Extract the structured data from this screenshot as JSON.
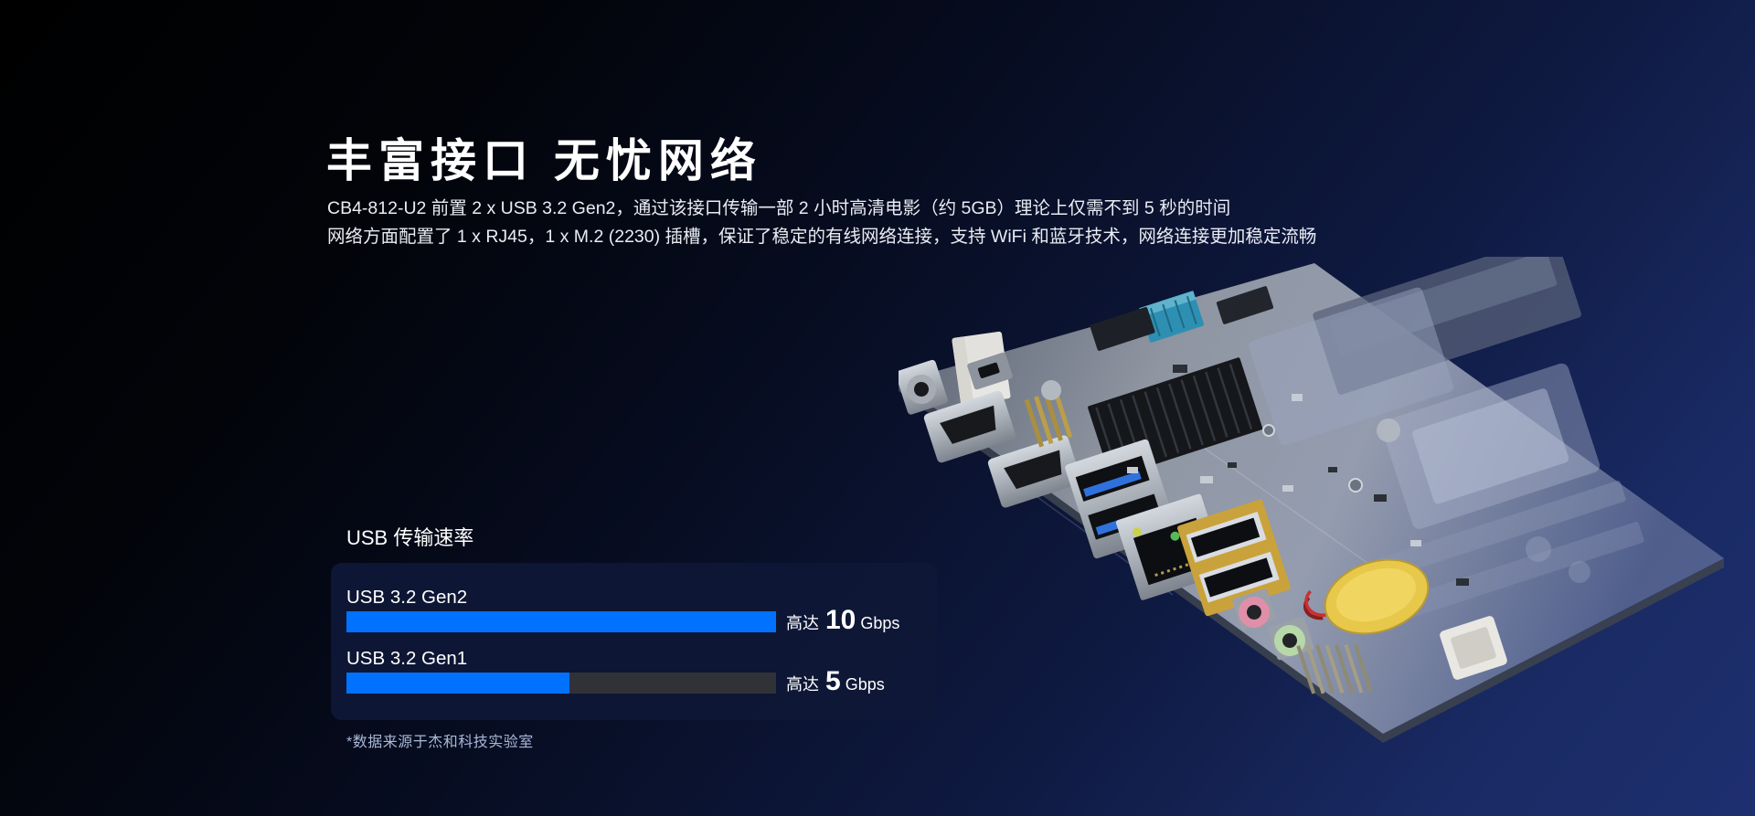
{
  "page": {
    "bg_top_color": "#000000",
    "bg_bottom_color": "#1e2f70"
  },
  "hero": {
    "title": "丰富接口 无忧网络",
    "paragraph_line1": "CB4-812-U2 前置 2 x USB 3.2 Gen2，通过该接口传输一部 2 小时高清电影（约 5GB）理论上仅需不到 5 秒的时间",
    "paragraph_line2": "网络方面配置了 1 x RJ45，1 x M.2 (2230) 插槽，保证了稳定的有线网络连接，支持 WiFi 和蓝牙技术，网络连接更加稳定流畅"
  },
  "speed_chart": {
    "title": "USB 传输速率",
    "rows": [
      {
        "label": "USB 3.2 Gen2",
        "prefix": "高达",
        "value": "10",
        "unit": "Gbps",
        "fill_percent": 100
      },
      {
        "label": "USB 3.2 Gen1",
        "prefix": "高达",
        "value": "5",
        "unit": "Gbps",
        "fill_percent": 52
      }
    ],
    "bar_color": "#0072ff",
    "track_color": "#313237",
    "panel_color": "#0f1737",
    "footnote": "*数据来源于杰和科技实验室"
  },
  "chart_data": {
    "type": "bar",
    "orientation": "horizontal",
    "title": "USB 传输速率",
    "categories": [
      "USB 3.2 Gen2",
      "USB 3.2 Gen1"
    ],
    "values": [
      10,
      5
    ],
    "unit": "Gbps",
    "value_prefix": "高达",
    "xlim": [
      0,
      10
    ],
    "grid": false,
    "legend": "none",
    "bar_color": "#0072ff",
    "track_color": "#313237",
    "footnote": "*数据来源于杰和科技实验室"
  },
  "board": {
    "description": "CB4-812-U2 motherboard photo, tilted view, right side ghost-faded"
  }
}
